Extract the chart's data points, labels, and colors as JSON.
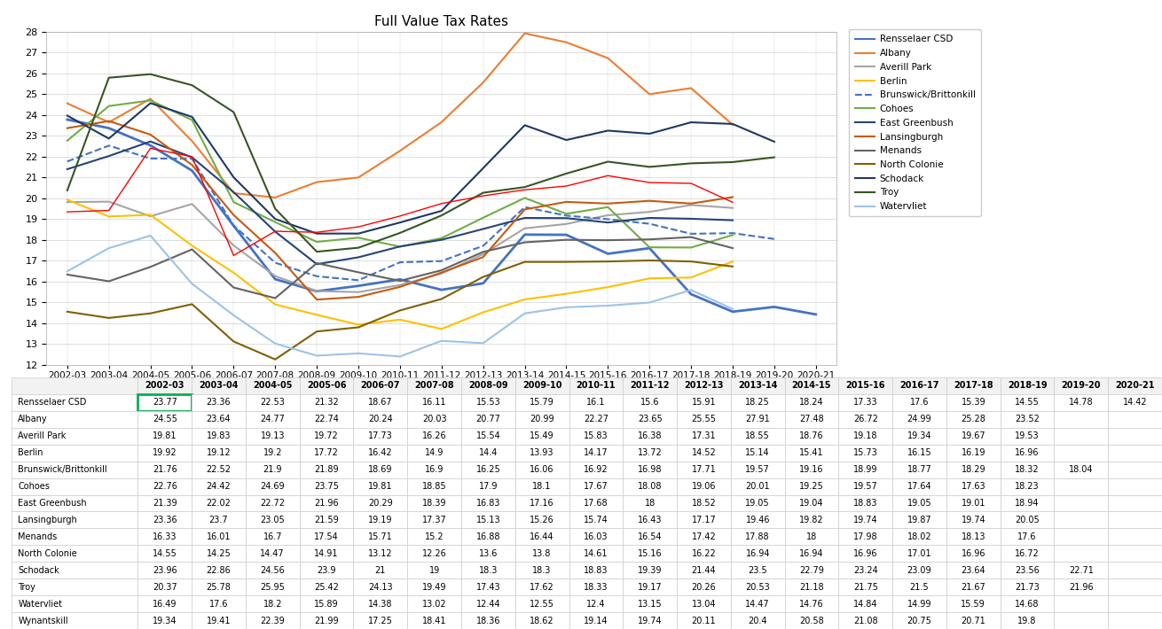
{
  "title": "Full Value Tax Rates",
  "x_labels": [
    "2002-03",
    "2003-04",
    "2004-05",
    "2005-06",
    "2006-07",
    "2007-08",
    "2008-09",
    "2009-10",
    "2010-11",
    "2011-12",
    "2012-13",
    "2013-14",
    "2014-15",
    "2015-16",
    "2016-17",
    "2017-18",
    "2018-19",
    "2019-20",
    "2020-21"
  ],
  "ylim": [
    12,
    28
  ],
  "yticks": [
    12,
    13,
    14,
    15,
    16,
    17,
    18,
    19,
    20,
    21,
    22,
    23,
    24,
    25,
    26,
    27,
    28
  ],
  "series": [
    {
      "name": "Rensselaer CSD",
      "color": "#4472C4",
      "linewidth": 2.0,
      "values": [
        23.77,
        23.36,
        22.53,
        21.32,
        18.67,
        16.11,
        15.53,
        15.79,
        16.1,
        15.6,
        15.91,
        18.25,
        18.24,
        17.33,
        17.6,
        15.39,
        14.55,
        14.78,
        14.42
      ]
    },
    {
      "name": "Albany",
      "color": "#ED7D31",
      "linewidth": 1.5,
      "values": [
        24.55,
        23.64,
        24.77,
        22.74,
        20.24,
        20.03,
        20.77,
        20.99,
        22.27,
        23.65,
        25.55,
        27.91,
        27.48,
        26.72,
        24.99,
        25.28,
        23.52,
        null,
        null
      ]
    },
    {
      "name": "Averill Park",
      "color": "#A5A5A5",
      "linewidth": 1.5,
      "values": [
        19.81,
        19.83,
        19.13,
        19.72,
        17.73,
        16.26,
        15.54,
        15.49,
        15.83,
        16.38,
        17.31,
        18.55,
        18.76,
        19.18,
        19.34,
        19.67,
        19.53,
        null,
        null
      ]
    },
    {
      "name": "Berlin",
      "color": "#FFC000",
      "linewidth": 1.5,
      "values": [
        19.92,
        19.12,
        19.2,
        17.72,
        16.42,
        14.9,
        14.4,
        13.93,
        14.17,
        13.72,
        14.52,
        15.14,
        15.41,
        15.73,
        16.15,
        16.19,
        16.96,
        null,
        null
      ]
    },
    {
      "name": "Brunswick/Brittonkill",
      "color": "#4472C4",
      "linewidth": 1.5,
      "linestyle": "--",
      "values": [
        21.76,
        22.52,
        21.9,
        21.89,
        18.69,
        16.9,
        16.25,
        16.06,
        16.92,
        16.98,
        17.71,
        19.57,
        19.16,
        18.99,
        18.77,
        18.29,
        18.32,
        18.04,
        null
      ]
    },
    {
      "name": "Cohoes",
      "color": "#70AD47",
      "linewidth": 1.5,
      "values": [
        22.76,
        24.42,
        24.69,
        23.75,
        19.81,
        18.85,
        17.9,
        18.1,
        17.67,
        18.08,
        19.06,
        20.01,
        19.25,
        19.57,
        17.64,
        17.63,
        18.23,
        null,
        null
      ]
    },
    {
      "name": "East Greenbush",
      "color": "#264478",
      "linewidth": 1.5,
      "values": [
        21.39,
        22.02,
        22.72,
        21.96,
        20.29,
        18.39,
        16.83,
        17.16,
        17.68,
        18.0,
        18.52,
        19.05,
        19.04,
        18.83,
        19.05,
        19.01,
        18.94,
        null,
        null
      ]
    },
    {
      "name": "Lansingburgh",
      "color": "#C55A11",
      "linewidth": 1.5,
      "values": [
        23.36,
        23.7,
        23.05,
        21.59,
        19.19,
        17.37,
        15.13,
        15.26,
        15.74,
        16.43,
        17.17,
        19.46,
        19.82,
        19.74,
        19.87,
        19.74,
        20.05,
        null,
        null
      ]
    },
    {
      "name": "Menands",
      "color": "#636363",
      "linewidth": 1.5,
      "values": [
        16.33,
        16.01,
        16.7,
        17.54,
        15.71,
        15.2,
        16.88,
        16.44,
        16.03,
        16.54,
        17.42,
        17.88,
        18.0,
        17.98,
        18.02,
        18.13,
        17.6,
        null,
        null
      ]
    },
    {
      "name": "North Colonie",
      "color": "#806000",
      "linewidth": 1.5,
      "values": [
        14.55,
        14.25,
        14.47,
        14.91,
        13.12,
        12.26,
        13.6,
        13.8,
        14.61,
        15.16,
        16.22,
        16.94,
        16.94,
        16.96,
        17.01,
        16.96,
        16.72,
        null,
        null
      ]
    },
    {
      "name": "Schodack",
      "color": "#1F3864",
      "linewidth": 1.5,
      "values": [
        23.96,
        22.86,
        24.56,
        23.9,
        21.0,
        19.0,
        18.3,
        18.3,
        18.83,
        19.39,
        21.44,
        23.5,
        22.79,
        23.24,
        23.09,
        23.64,
        23.56,
        22.71,
        null
      ]
    },
    {
      "name": "Troy",
      "color": "#375623",
      "linewidth": 1.5,
      "values": [
        20.37,
        25.78,
        25.95,
        25.42,
        24.13,
        19.49,
        17.43,
        17.62,
        18.33,
        19.17,
        20.26,
        20.53,
        21.18,
        21.75,
        21.5,
        21.67,
        21.73,
        21.96,
        null
      ]
    },
    {
      "name": "Watervliet",
      "color": "#9DC3E6",
      "linewidth": 1.5,
      "values": [
        16.49,
        17.6,
        18.2,
        15.89,
        14.38,
        13.02,
        12.44,
        12.55,
        12.4,
        13.15,
        13.04,
        14.47,
        14.76,
        14.84,
        14.99,
        15.59,
        14.68,
        null,
        null
      ]
    },
    {
      "name": "Wynantskill",
      "color": "#FF0000",
      "linewidth": 1.0,
      "values": [
        19.34,
        19.41,
        22.39,
        21.99,
        17.25,
        18.41,
        18.36,
        18.62,
        19.14,
        19.74,
        20.11,
        20.4,
        20.58,
        21.08,
        20.75,
        20.71,
        19.8,
        null,
        null
      ]
    }
  ],
  "table": {
    "columns": [
      "",
      "2002-03",
      "2003-04",
      "2004-05",
      "2005-06",
      "2006-07",
      "2007-08",
      "2008-09",
      "2009-10",
      "2010-11",
      "2011-12",
      "2012-13",
      "2013-14",
      "2014-15",
      "2015-16",
      "2016-17",
      "2017-18",
      "2018-19",
      "2019-20",
      "2020-21"
    ],
    "rows": [
      [
        "Rensselaer CSD",
        "23.77",
        "23.36",
        "22.53",
        "21.32",
        "18.67",
        "16.11",
        "15.53",
        "15.79",
        "16.1",
        "15.6",
        "15.91",
        "18.25",
        "18.24",
        "17.33",
        "17.6",
        "15.39",
        "14.55",
        "14.78",
        "14.42"
      ],
      [
        "Albany",
        "24.55",
        "23.64",
        "24.77",
        "22.74",
        "20.24",
        "20.03",
        "20.77",
        "20.99",
        "22.27",
        "23.65",
        "25.55",
        "27.91",
        "27.48",
        "26.72",
        "24.99",
        "25.28",
        "23.52",
        "",
        ""
      ],
      [
        "Averill Park",
        "19.81",
        "19.83",
        "19.13",
        "19.72",
        "17.73",
        "16.26",
        "15.54",
        "15.49",
        "15.83",
        "16.38",
        "17.31",
        "18.55",
        "18.76",
        "19.18",
        "19.34",
        "19.67",
        "19.53",
        "",
        ""
      ],
      [
        "Berlin",
        "19.92",
        "19.12",
        "19.2",
        "17.72",
        "16.42",
        "14.9",
        "14.4",
        "13.93",
        "14.17",
        "13.72",
        "14.52",
        "15.14",
        "15.41",
        "15.73",
        "16.15",
        "16.19",
        "16.96",
        "",
        ""
      ],
      [
        "Brunswick/Brittonkill",
        "21.76",
        "22.52",
        "21.9",
        "21.89",
        "18.69",
        "16.9",
        "16.25",
        "16.06",
        "16.92",
        "16.98",
        "17.71",
        "19.57",
        "19.16",
        "18.99",
        "18.77",
        "18.29",
        "18.32",
        "18.04",
        ""
      ],
      [
        "Cohoes",
        "22.76",
        "24.42",
        "24.69",
        "23.75",
        "19.81",
        "18.85",
        "17.9",
        "18.1",
        "17.67",
        "18.08",
        "19.06",
        "20.01",
        "19.25",
        "19.57",
        "17.64",
        "17.63",
        "18.23",
        "",
        ""
      ],
      [
        "East Greenbush",
        "21.39",
        "22.02",
        "22.72",
        "21.96",
        "20.29",
        "18.39",
        "16.83",
        "17.16",
        "17.68",
        "18",
        "18.52",
        "19.05",
        "19.04",
        "18.83",
        "19.05",
        "19.01",
        "18.94",
        "",
        ""
      ],
      [
        "Lansingburgh",
        "23.36",
        "23.7",
        "23.05",
        "21.59",
        "19.19",
        "17.37",
        "15.13",
        "15.26",
        "15.74",
        "16.43",
        "17.17",
        "19.46",
        "19.82",
        "19.74",
        "19.87",
        "19.74",
        "20.05",
        "",
        ""
      ],
      [
        "Menands",
        "16.33",
        "16.01",
        "16.7",
        "17.54",
        "15.71",
        "15.2",
        "16.88",
        "16.44",
        "16.03",
        "16.54",
        "17.42",
        "17.88",
        "18",
        "17.98",
        "18.02",
        "18.13",
        "17.6",
        "",
        ""
      ],
      [
        "North Colonie",
        "14.55",
        "14.25",
        "14.47",
        "14.91",
        "13.12",
        "12.26",
        "13.6",
        "13.8",
        "14.61",
        "15.16",
        "16.22",
        "16.94",
        "16.94",
        "16.96",
        "17.01",
        "16.96",
        "16.72",
        "",
        ""
      ],
      [
        "Schodack",
        "23.96",
        "22.86",
        "24.56",
        "23.9",
        "21",
        "19",
        "18.3",
        "18.3",
        "18.83",
        "19.39",
        "21.44",
        "23.5",
        "22.79",
        "23.24",
        "23.09",
        "23.64",
        "23.56",
        "22.71",
        ""
      ],
      [
        "Troy",
        "20.37",
        "25.78",
        "25.95",
        "25.42",
        "24.13",
        "19.49",
        "17.43",
        "17.62",
        "18.33",
        "19.17",
        "20.26",
        "20.53",
        "21.18",
        "21.75",
        "21.5",
        "21.67",
        "21.73",
        "21.96",
        ""
      ],
      [
        "Watervliet",
        "16.49",
        "17.6",
        "18.2",
        "15.89",
        "14.38",
        "13.02",
        "12.44",
        "12.55",
        "12.4",
        "13.15",
        "13.04",
        "14.47",
        "14.76",
        "14.84",
        "14.99",
        "15.59",
        "14.68",
        "",
        ""
      ],
      [
        "Wynantskill",
        "19.34",
        "19.41",
        "22.39",
        "21.99",
        "17.25",
        "18.41",
        "18.36",
        "18.62",
        "19.14",
        "19.74",
        "20.11",
        "20.4",
        "20.58",
        "21.08",
        "20.75",
        "20.71",
        "19.8",
        "",
        ""
      ]
    ]
  }
}
